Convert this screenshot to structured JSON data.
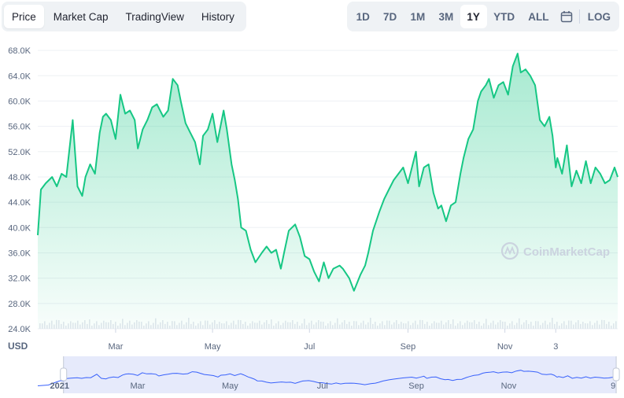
{
  "tabs": [
    {
      "label": "Price",
      "active": true
    },
    {
      "label": "Market Cap",
      "active": false
    },
    {
      "label": "TradingView",
      "active": false
    },
    {
      "label": "History",
      "active": false
    }
  ],
  "ranges": [
    {
      "label": "1D",
      "active": false
    },
    {
      "label": "7D",
      "active": false
    },
    {
      "label": "1M",
      "active": false
    },
    {
      "label": "3M",
      "active": false
    },
    {
      "label": "1Y",
      "active": true
    },
    {
      "label": "YTD",
      "active": false
    },
    {
      "label": "ALL",
      "active": false
    }
  ],
  "calendar_icon": "calendar-icon",
  "log_label": "LOG",
  "currency_label": "USD",
  "watermark": "CoinMarketCap",
  "colors": {
    "line": "#16c784",
    "fill": "#16c784",
    "navigator_line": "#3861fb",
    "navigator_band": "#e6eafb"
  },
  "chart_data": {
    "type": "area",
    "ylim": [
      24000,
      70000
    ],
    "yticks": [
      "68.0K",
      "64.0K",
      "60.0K",
      "56.0K",
      "52.0K",
      "48.0K",
      "44.0K",
      "40.0K",
      "36.0K",
      "32.0K",
      "28.0K",
      "24.0K"
    ],
    "ytick_values": [
      68000,
      64000,
      60000,
      56000,
      52000,
      48000,
      44000,
      40000,
      36000,
      32000,
      28000,
      24000
    ],
    "xticks": [
      "Mar",
      "May",
      "Jul",
      "Sep",
      "Nov",
      "3"
    ],
    "xtick_dates": [
      "2021-03-01",
      "2021-05-01",
      "2021-07-01",
      "2021-09-01",
      "2021-11-01",
      "2021-12-03"
    ],
    "xlim": [
      "2021-01-11",
      "2022-01-11"
    ],
    "grid": true,
    "series": [
      {
        "x": [
          "2021-01-11",
          "2021-01-13",
          "2021-01-16",
          "2021-01-20",
          "2021-01-23",
          "2021-01-26",
          "2021-01-29",
          "2021-02-02",
          "2021-02-05",
          "2021-02-08",
          "2021-02-10",
          "2021-02-13",
          "2021-02-16",
          "2021-02-19",
          "2021-02-21",
          "2021-02-23",
          "2021-02-26",
          "2021-03-01",
          "2021-03-04",
          "2021-03-07",
          "2021-03-10",
          "2021-03-13",
          "2021-03-15",
          "2021-03-18",
          "2021-03-21",
          "2021-03-24",
          "2021-03-27",
          "2021-03-31",
          "2021-04-03",
          "2021-04-06",
          "2021-04-09",
          "2021-04-11",
          "2021-04-14",
          "2021-04-17",
          "2021-04-20",
          "2021-04-23",
          "2021-04-25",
          "2021-04-28",
          "2021-05-01",
          "2021-05-04",
          "2021-05-08",
          "2021-05-10",
          "2021-05-13",
          "2021-05-15",
          "2021-05-17",
          "2021-05-19",
          "2021-05-22",
          "2021-05-25",
          "2021-05-28",
          "2021-06-01",
          "2021-06-04",
          "2021-06-07",
          "2021-06-10",
          "2021-06-13",
          "2021-06-15",
          "2021-06-18",
          "2021-06-22",
          "2021-06-25",
          "2021-06-28",
          "2021-07-01",
          "2021-07-04",
          "2021-07-07",
          "2021-07-10",
          "2021-07-13",
          "2021-07-16",
          "2021-07-20",
          "2021-07-22",
          "2021-07-26",
          "2021-07-29",
          "2021-08-02",
          "2021-08-05",
          "2021-08-07",
          "2021-08-10",
          "2021-08-14",
          "2021-08-17",
          "2021-08-20",
          "2021-08-23",
          "2021-08-26",
          "2021-08-29",
          "2021-09-01",
          "2021-09-04",
          "2021-09-06",
          "2021-09-08",
          "2021-09-11",
          "2021-09-14",
          "2021-09-17",
          "2021-09-20",
          "2021-09-22",
          "2021-09-25",
          "2021-09-28",
          "2021-10-01",
          "2021-10-04",
          "2021-10-06",
          "2021-10-09",
          "2021-10-12",
          "2021-10-15",
          "2021-10-17",
          "2021-10-20",
          "2021-10-22",
          "2021-10-25",
          "2021-10-28",
          "2021-10-31",
          "2021-11-03",
          "2021-11-06",
          "2021-11-09",
          "2021-11-11",
          "2021-11-14",
          "2021-11-17",
          "2021-11-20",
          "2021-11-23",
          "2021-11-26",
          "2021-11-29",
          "2021-12-01",
          "2021-12-03",
          "2021-12-04",
          "2021-12-07",
          "2021-12-10",
          "2021-12-13",
          "2021-12-16",
          "2021-12-19",
          "2021-12-22",
          "2021-12-25",
          "2021-12-28",
          "2021-12-31",
          "2022-01-03",
          "2022-01-06",
          "2022-01-09",
          "2022-01-11"
        ],
        "y": [
          38800,
          46000,
          47000,
          48000,
          46500,
          48500,
          48000,
          57000,
          46500,
          45000,
          48000,
          50000,
          48500,
          55000,
          57500,
          58000,
          57000,
          54000,
          61000,
          58000,
          58500,
          57000,
          52500,
          55500,
          57000,
          59000,
          59500,
          57500,
          58500,
          63500,
          62500,
          60000,
          56500,
          55000,
          53500,
          50000,
          54500,
          55500,
          58000,
          53500,
          58500,
          55500,
          50000,
          47500,
          44500,
          40000,
          39500,
          36500,
          34500,
          36000,
          37000,
          36000,
          36500,
          33500,
          36000,
          39500,
          40500,
          38500,
          35500,
          35000,
          33000,
          31500,
          34500,
          32000,
          33500,
          34000,
          33500,
          32000,
          30000,
          32500,
          34000,
          36000,
          39500,
          42500,
          44500,
          46000,
          47500,
          48500,
          49500,
          47000,
          50000,
          52000,
          46500,
          49500,
          50000,
          45500,
          43000,
          43500,
          41000,
          43500,
          44000,
          48500,
          51000,
          54000,
          55500,
          60000,
          61500,
          62500,
          63500,
          60500,
          62500,
          63000,
          61000,
          65500,
          67500,
          64500,
          65000,
          64000,
          62500,
          57000,
          56000,
          57500,
          54500,
          49500,
          51000,
          48500,
          53000,
          46500,
          49000,
          47000,
          50500,
          47000,
          49500,
          48500,
          47000,
          47500,
          49500,
          48000
        ]
      }
    ]
  },
  "navigator": {
    "labels": [
      "2021",
      "Mar",
      "May",
      "Jul",
      "Sep",
      "Nov",
      "9"
    ],
    "label_dates": [
      "2021-01-01",
      "2021-03-01",
      "2021-05-01",
      "2021-07-01",
      "2021-09-01",
      "2021-11-01",
      "2022-01-09"
    ],
    "xlim": [
      "2020-12-25",
      "2022-01-12"
    ],
    "selection": [
      "2021-01-11",
      "2022-01-11"
    ]
  }
}
